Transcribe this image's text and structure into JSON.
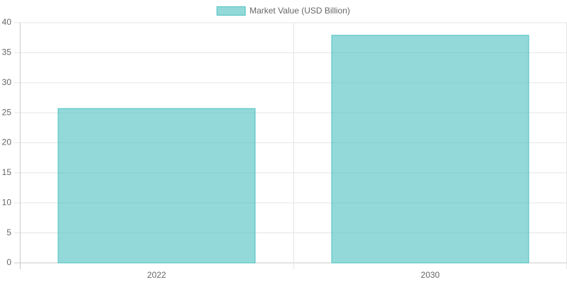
{
  "chart_data": {
    "type": "bar",
    "categories": [
      "2022",
      "2030"
    ],
    "series": [
      {
        "name": "Market Value (USD Billion)",
        "color": "rgba(75, 192, 192, 0.6)",
        "border_color": "rgb(75, 192, 192)",
        "values": [
          25.7,
          37.9
        ]
      }
    ],
    "ylim": [
      0,
      40
    ],
    "yticks": [
      0,
      5,
      10,
      15,
      20,
      25,
      30,
      35,
      40
    ],
    "grid": true,
    "legend": "top"
  }
}
